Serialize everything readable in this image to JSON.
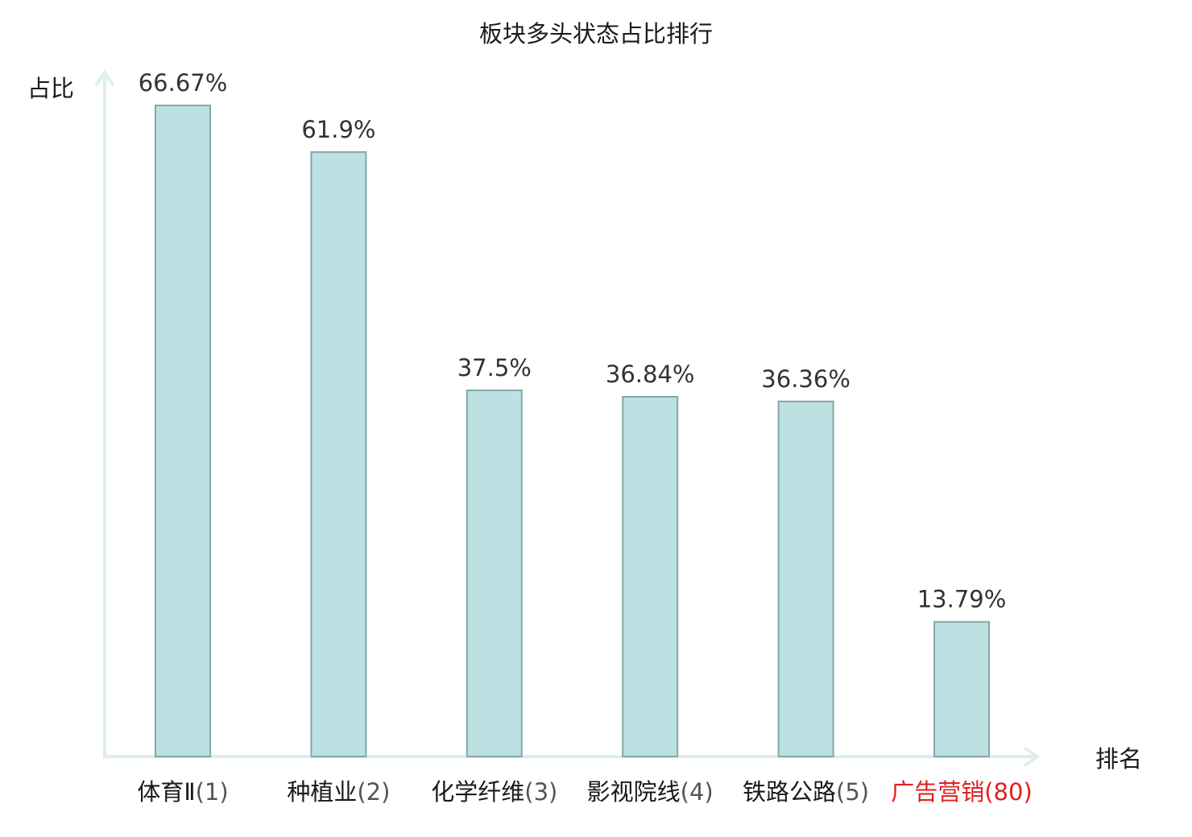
{
  "chart_data": {
    "type": "bar",
    "title": "板块多头状态占比排行",
    "ylabel": "占比",
    "xlabel": "排名",
    "categories": [
      {
        "name": "体育Ⅱ",
        "rank": "(1)",
        "highlight": false
      },
      {
        "name": "种植业",
        "rank": "(2)",
        "highlight": false
      },
      {
        "name": "化学纤维",
        "rank": "(3)",
        "highlight": false
      },
      {
        "name": "影视院线",
        "rank": "(4)",
        "highlight": false
      },
      {
        "name": "铁路公路",
        "rank": "(5)",
        "highlight": false
      },
      {
        "name": "广告营销",
        "rank": "(80)",
        "highlight": true
      }
    ],
    "values": [
      66.67,
      61.9,
      37.5,
      36.84,
      36.36,
      13.79
    ],
    "value_labels": [
      "66.67%",
      "61.9%",
      "37.5%",
      "36.84%",
      "36.36%",
      "13.79%"
    ],
    "ylim": [
      0,
      66.67
    ],
    "grid": false,
    "colors": {
      "bar_fill": "#bde0e3",
      "bar_stroke": "#84a7aa",
      "axis": "#dcefed",
      "category_text": "#1a1a1a",
      "rank_text": "#555555",
      "highlight_text": "#e02020"
    }
  }
}
